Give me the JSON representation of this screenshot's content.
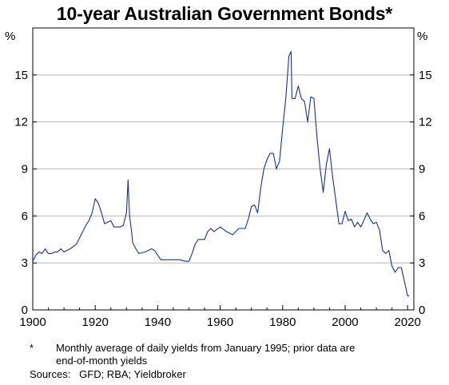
{
  "chart_data": {
    "type": "line",
    "title": "10-year Australian Government Bonds*",
    "ylabel_left": "%",
    "ylabel_right": "%",
    "xlim": [
      1900,
      2022
    ],
    "ylim": [
      0,
      18
    ],
    "yticks": [
      0,
      3,
      6,
      9,
      12,
      15
    ],
    "xticks": [
      1900,
      1920,
      1940,
      1960,
      1980,
      2000,
      2020
    ],
    "grid": true,
    "line_color": "#1a2f9c",
    "series": [
      {
        "x": [
          1900,
          1901,
          1902,
          1903,
          1904,
          1905,
          1906,
          1907,
          1908,
          1909,
          1910,
          1912,
          1914,
          1915,
          1916,
          1917,
          1918,
          1919,
          1920,
          1921,
          1922,
          1923,
          1924,
          1925,
          1926,
          1927,
          1928,
          1929,
          1930,
          1930.5,
          1931,
          1931.5,
          1932,
          1933,
          1934,
          1936,
          1938,
          1939,
          1940,
          1941,
          1943,
          1945,
          1947,
          1949,
          1950,
          1951,
          1952,
          1953,
          1954,
          1955,
          1956,
          1957,
          1958,
          1960,
          1962,
          1964,
          1966,
          1968,
          1969,
          1970,
          1971,
          1972,
          1973,
          1974,
          1975,
          1976,
          1977,
          1978,
          1979,
          1980,
          1981,
          1982,
          1982.7,
          1983,
          1984,
          1985,
          1986,
          1987,
          1988,
          1989,
          1990,
          1991,
          1992,
          1993,
          1994,
          1995,
          1996,
          1997,
          1998,
          1999,
          2000,
          2001,
          2002,
          2003,
          2004,
          2005,
          2006,
          2007,
          2008,
          2009,
          2010,
          2011,
          2012,
          2013,
          2014,
          2015,
          2016,
          2017,
          2018,
          2019,
          2020,
          2020.5
        ],
        "y": [
          3.1,
          3.5,
          3.7,
          3.6,
          3.9,
          3.6,
          3.6,
          3.7,
          3.7,
          3.9,
          3.7,
          3.9,
          4.2,
          4.6,
          5.0,
          5.4,
          5.7,
          6.2,
          7.1,
          6.8,
          6.2,
          5.5,
          5.6,
          5.7,
          5.3,
          5.3,
          5.3,
          5.4,
          6.2,
          8.3,
          6.0,
          5.2,
          4.3,
          3.9,
          3.6,
          3.7,
          3.9,
          3.8,
          3.5,
          3.2,
          3.2,
          3.2,
          3.2,
          3.1,
          3.1,
          3.6,
          4.2,
          4.5,
          4.5,
          4.5,
          5.0,
          5.2,
          5.0,
          5.3,
          5.0,
          4.8,
          5.2,
          5.2,
          5.8,
          6.6,
          6.7,
          6.2,
          7.8,
          9.0,
          9.6,
          10.0,
          10.0,
          9.0,
          9.5,
          11.6,
          13.5,
          16.2,
          16.5,
          13.5,
          13.5,
          14.3,
          13.5,
          13.3,
          12.0,
          13.6,
          13.5,
          11.0,
          9.0,
          7.5,
          9.3,
          10.3,
          8.5,
          7.0,
          5.5,
          5.5,
          6.3,
          5.7,
          5.8,
          5.3,
          5.6,
          5.3,
          5.7,
          6.2,
          5.8,
          5.5,
          5.6,
          5.1,
          3.8,
          3.6,
          3.8,
          2.8,
          2.4,
          2.7,
          2.7,
          1.8,
          0.9,
          0.9
        ]
      }
    ],
    "footnote_marker": "*",
    "footnote": [
      "Monthly average of daily yields from January 1995; prior data are",
      "end-of-month yields"
    ],
    "sources": "Sources:   GFD; RBA; Yieldbroker"
  }
}
